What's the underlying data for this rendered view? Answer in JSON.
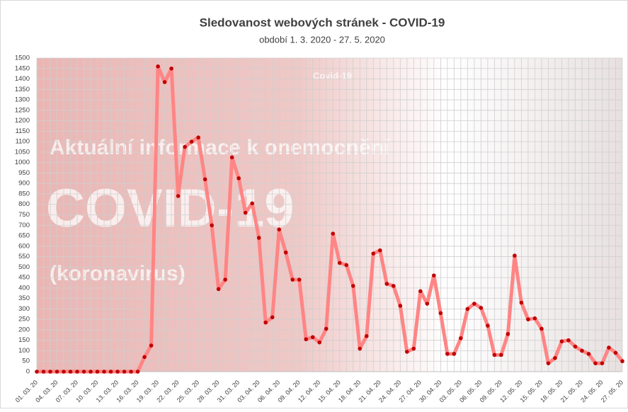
{
  "chart_data": {
    "type": "line",
    "title": "Sledovanost webových stránek - COVID-19",
    "subtitle": "období 1. 3. 2020 - 27. 5. 2020",
    "background_texts": [
      "Aktuální informace k onemocnění",
      "COVID-19",
      "(koronavirus)",
      "Covid-19"
    ],
    "categories": [
      "01. 03. 20",
      null,
      null,
      "04. 03. 20",
      null,
      null,
      "07. 03. 20",
      null,
      null,
      "10. 03. 20",
      null,
      null,
      "13. 03. 20",
      null,
      null,
      "16. 03. 20",
      null,
      null,
      "19. 03. 20",
      null,
      null,
      "22. 03. 20",
      null,
      null,
      "25. 03. 20",
      null,
      null,
      "28. 03. 20",
      null,
      null,
      "31. 03. 20",
      null,
      null,
      "03. 04. 20",
      null,
      null,
      "06. 04. 20",
      null,
      null,
      "09. 04. 20",
      null,
      null,
      "12. 04. 20",
      null,
      null,
      "15. 04. 20",
      null,
      null,
      "18. 04. 20",
      null,
      null,
      "21. 04. 20",
      null,
      null,
      "24. 04. 20",
      null,
      null,
      "27. 04. 20",
      null,
      null,
      "30. 04. 20",
      null,
      null,
      "03. 05. 20",
      null,
      null,
      "06. 05. 20",
      null,
      null,
      "09. 05. 20",
      null,
      null,
      "12. 05. 20",
      null,
      null,
      "15. 05. 20",
      null,
      null,
      "18. 05. 20",
      null,
      null,
      "21. 05. 20",
      null,
      null,
      "24. 05. 20",
      null,
      null,
      "27. 05. 20"
    ],
    "values": [
      0,
      0,
      0,
      0,
      0,
      0,
      0,
      0,
      0,
      0,
      0,
      0,
      0,
      0,
      0,
      0,
      70,
      125,
      1460,
      1385,
      1450,
      840,
      1075,
      1100,
      1120,
      920,
      700,
      395,
      440,
      1025,
      925,
      760,
      805,
      640,
      235,
      260,
      680,
      570,
      440,
      440,
      155,
      165,
      140,
      205,
      660,
      520,
      510,
      410,
      110,
      170,
      565,
      580,
      420,
      410,
      315,
      95,
      110,
      385,
      325,
      460,
      280,
      85,
      85,
      160,
      300,
      325,
      305,
      220,
      80,
      80,
      180,
      555,
      330,
      250,
      255,
      205,
      40,
      65,
      145,
      150,
      120,
      100,
      85,
      40,
      40,
      115,
      90,
      50
    ],
    "color": "#ff8585",
    "marker_color": "#c00000",
    "ylim": [
      0,
      1500
    ],
    "yticks": [
      0,
      50,
      100,
      150,
      200,
      250,
      300,
      350,
      400,
      450,
      500,
      550,
      600,
      650,
      700,
      750,
      800,
      850,
      900,
      950,
      1000,
      1050,
      1100,
      1150,
      1200,
      1250,
      1300,
      1350,
      1400,
      1450,
      1500
    ],
    "grid": true
  }
}
